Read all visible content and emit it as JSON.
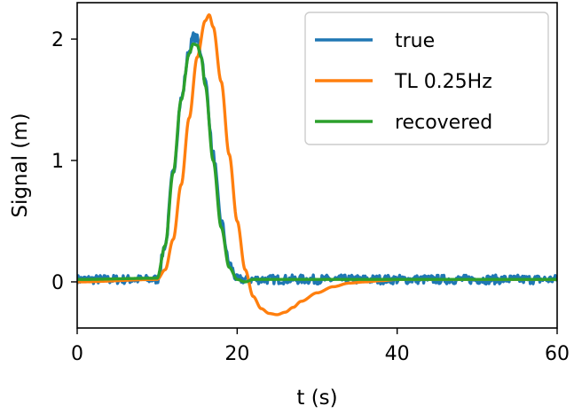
{
  "chart_data": {
    "type": "line",
    "xlabel": "t (s)",
    "ylabel": "Signal (m)",
    "xlim": [
      0,
      60
    ],
    "ylim": [
      -0.38,
      2.3
    ],
    "xticks": [
      0,
      20,
      40,
      60
    ],
    "yticks": [
      0,
      1,
      2
    ],
    "grid": false,
    "legend_position": "top-right",
    "series": [
      {
        "name": "true",
        "color": "#1f77b4",
        "noise": true,
        "x": [
          0,
          10,
          11,
          12,
          13,
          14,
          14.5,
          15,
          15.5,
          16,
          17,
          18,
          19,
          20,
          60
        ],
        "y": [
          0.02,
          0.02,
          0.3,
          0.9,
          1.5,
          1.9,
          2.02,
          2.0,
          1.88,
          1.65,
          1.05,
          0.5,
          0.15,
          0.02,
          0.02
        ]
      },
      {
        "name": "TL 0.25Hz",
        "color": "#ff7f0e",
        "noise": false,
        "x": [
          0,
          10,
          11,
          12,
          13,
          14,
          15,
          16,
          16.5,
          17,
          18,
          19,
          20,
          21,
          22,
          23,
          24,
          25,
          26,
          27,
          28,
          30,
          32,
          34,
          36,
          38,
          40,
          45,
          60
        ],
        "y": [
          0.0,
          0.02,
          0.1,
          0.35,
          0.8,
          1.35,
          1.85,
          2.15,
          2.2,
          2.1,
          1.65,
          1.05,
          0.5,
          0.1,
          -0.12,
          -0.22,
          -0.26,
          -0.27,
          -0.25,
          -0.21,
          -0.16,
          -0.09,
          -0.04,
          -0.01,
          0.0,
          0.01,
          0.02,
          0.02,
          0.02
        ]
      },
      {
        "name": "recovered",
        "color": "#2ca02c",
        "noise": false,
        "x": [
          0,
          10,
          11,
          12,
          13,
          14,
          14.5,
          15,
          15.5,
          16,
          17,
          18,
          19,
          20,
          21,
          22,
          60
        ],
        "y": [
          0.02,
          0.03,
          0.3,
          0.9,
          1.5,
          1.88,
          1.96,
          1.95,
          1.85,
          1.62,
          1.0,
          0.45,
          0.12,
          0.02,
          0.0,
          0.02,
          0.02
        ]
      }
    ]
  }
}
